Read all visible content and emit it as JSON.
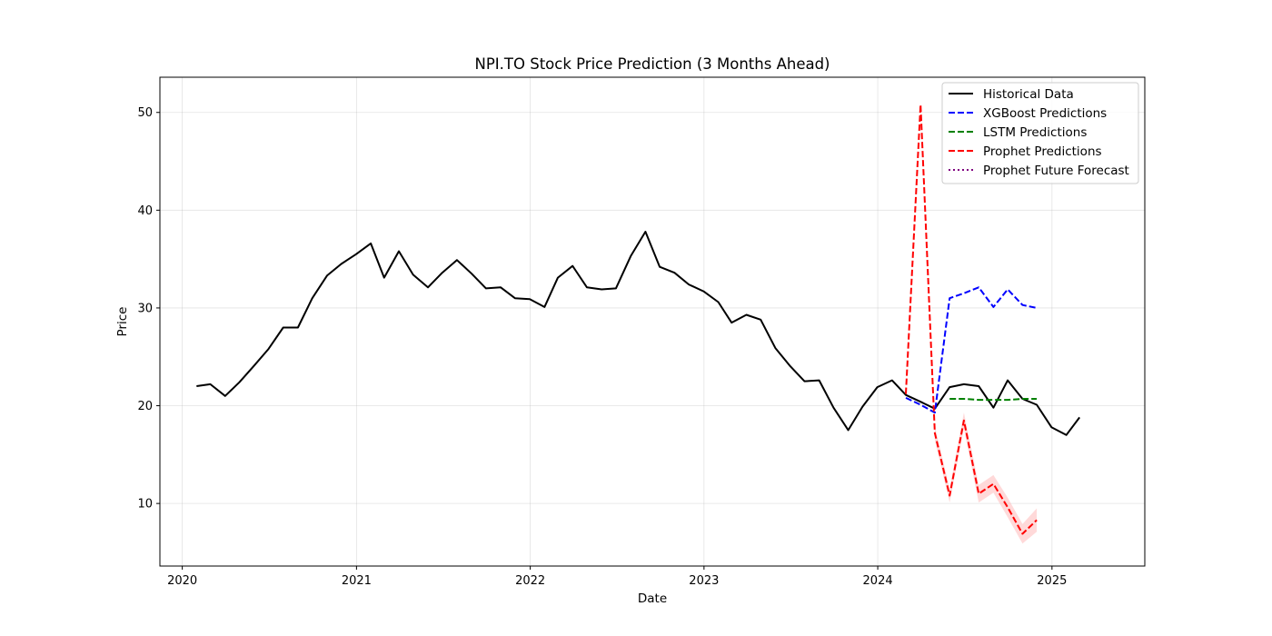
{
  "chart_data": {
    "type": "line",
    "title": "NPI.TO Stock Price Prediction (3 Months Ahead)",
    "xlabel": "Date",
    "ylabel": "Price",
    "x_axis": "date",
    "xlim": [
      "2019-11-15",
      "2025-07-15"
    ],
    "ylim": [
      3.6,
      53.6
    ],
    "xticks": [
      {
        "date": "2020-01-01",
        "label": "2020"
      },
      {
        "date": "2021-01-01",
        "label": "2021"
      },
      {
        "date": "2022-01-01",
        "label": "2022"
      },
      {
        "date": "2023-01-01",
        "label": "2023"
      },
      {
        "date": "2024-01-01",
        "label": "2024"
      },
      {
        "date": "2025-01-01",
        "label": "2025"
      }
    ],
    "yticks": [
      10,
      20,
      30,
      40,
      50
    ],
    "grid": true,
    "legend_position": "top-right",
    "series": [
      {
        "name": "Historical Data",
        "color": "#000000",
        "style": "solid",
        "points": [
          [
            "2020-01-31",
            22.0
          ],
          [
            "2020-02-29",
            22.2
          ],
          [
            "2020-03-31",
            21.0
          ],
          [
            "2020-04-30",
            22.4
          ],
          [
            "2020-05-31",
            24.1
          ],
          [
            "2020-06-30",
            25.8
          ],
          [
            "2020-07-31",
            28.0
          ],
          [
            "2020-08-31",
            28.0
          ],
          [
            "2020-09-30",
            31.0
          ],
          [
            "2020-10-31",
            33.3
          ],
          [
            "2020-11-30",
            34.5
          ],
          [
            "2020-12-31",
            35.5
          ],
          [
            "2021-01-31",
            36.6
          ],
          [
            "2021-02-28",
            33.1
          ],
          [
            "2021-03-31",
            35.8
          ],
          [
            "2021-04-30",
            33.4
          ],
          [
            "2021-05-31",
            32.1
          ],
          [
            "2021-06-30",
            33.6
          ],
          [
            "2021-07-31",
            34.9
          ],
          [
            "2021-08-31",
            33.5
          ],
          [
            "2021-09-30",
            32.0
          ],
          [
            "2021-10-31",
            32.1
          ],
          [
            "2021-11-30",
            31.0
          ],
          [
            "2021-12-31",
            30.9
          ],
          [
            "2022-01-31",
            30.1
          ],
          [
            "2022-02-28",
            33.1
          ],
          [
            "2022-03-31",
            34.3
          ],
          [
            "2022-04-30",
            32.1
          ],
          [
            "2022-05-31",
            31.9
          ],
          [
            "2022-06-30",
            32.0
          ],
          [
            "2022-07-31",
            35.3
          ],
          [
            "2022-08-31",
            37.8
          ],
          [
            "2022-09-30",
            34.2
          ],
          [
            "2022-10-31",
            33.6
          ],
          [
            "2022-11-30",
            32.4
          ],
          [
            "2022-12-31",
            31.7
          ],
          [
            "2023-01-31",
            30.6
          ],
          [
            "2023-02-28",
            28.5
          ],
          [
            "2023-03-31",
            29.3
          ],
          [
            "2023-04-30",
            28.8
          ],
          [
            "2023-05-31",
            25.9
          ],
          [
            "2023-06-30",
            24.1
          ],
          [
            "2023-07-31",
            22.5
          ],
          [
            "2023-08-31",
            22.6
          ],
          [
            "2023-09-30",
            19.8
          ],
          [
            "2023-10-31",
            17.5
          ],
          [
            "2023-11-30",
            19.9
          ],
          [
            "2023-12-31",
            21.9
          ],
          [
            "2024-01-31",
            22.6
          ],
          [
            "2024-02-29",
            21.1
          ],
          [
            "2024-03-31",
            20.4
          ],
          [
            "2024-04-30",
            19.7
          ],
          [
            "2024-05-31",
            21.9
          ],
          [
            "2024-06-30",
            22.2
          ],
          [
            "2024-07-31",
            22.0
          ],
          [
            "2024-08-31",
            19.8
          ],
          [
            "2024-09-30",
            22.6
          ],
          [
            "2024-10-31",
            20.7
          ],
          [
            "2024-11-30",
            20.1
          ],
          [
            "2024-12-31",
            17.8
          ],
          [
            "2025-01-31",
            17.0
          ],
          [
            "2025-02-28",
            18.8
          ]
        ]
      },
      {
        "name": "XGBoost Predictions",
        "color": "#0000ff",
        "style": "dashed",
        "points": [
          [
            "2024-02-29",
            20.8
          ],
          [
            "2024-03-31",
            20.1
          ],
          [
            "2024-04-30",
            19.3
          ],
          [
            "2024-05-31",
            31.0
          ],
          [
            "2024-06-30",
            31.5
          ],
          [
            "2024-07-31",
            32.1
          ],
          [
            "2024-08-31",
            30.1
          ],
          [
            "2024-09-30",
            31.9
          ],
          [
            "2024-10-31",
            30.3
          ],
          [
            "2024-11-30",
            30.0
          ]
        ]
      },
      {
        "name": "LSTM Predictions",
        "color": "#008000",
        "style": "dashed",
        "points": [
          [
            "2024-05-31",
            20.7
          ],
          [
            "2024-06-30",
            20.7
          ],
          [
            "2024-07-31",
            20.6
          ],
          [
            "2024-08-31",
            20.6
          ],
          [
            "2024-09-30",
            20.6
          ],
          [
            "2024-10-31",
            20.7
          ],
          [
            "2024-11-30",
            20.7
          ]
        ]
      },
      {
        "name": "Prophet Predictions",
        "color": "#ff0000",
        "style": "dashed",
        "band_color": "#ffc0c0",
        "points": [
          [
            "2024-02-29",
            21.2
          ],
          [
            "2024-03-31",
            50.8
          ],
          [
            "2024-04-30",
            17.2
          ],
          [
            "2024-05-31",
            10.8
          ],
          [
            "2024-06-30",
            18.5
          ],
          [
            "2024-07-31",
            11.0
          ],
          [
            "2024-08-31",
            12.0
          ],
          [
            "2024-09-30",
            9.6
          ],
          [
            "2024-10-31",
            6.9
          ],
          [
            "2024-11-30",
            8.3
          ]
        ],
        "band": [
          [
            "2024-04-30",
            16.5,
            17.9
          ],
          [
            "2024-05-31",
            10.1,
            11.5
          ],
          [
            "2024-06-30",
            17.7,
            19.3
          ],
          [
            "2024-07-31",
            10.1,
            11.9
          ],
          [
            "2024-08-31",
            11.1,
            12.9
          ],
          [
            "2024-09-30",
            8.6,
            10.6
          ],
          [
            "2024-10-31",
            5.9,
            7.9
          ],
          [
            "2024-11-30",
            7.1,
            9.5
          ]
        ]
      },
      {
        "name": "Prophet Future Forecast",
        "color": "#800080",
        "style": "dotted",
        "points": []
      }
    ]
  }
}
